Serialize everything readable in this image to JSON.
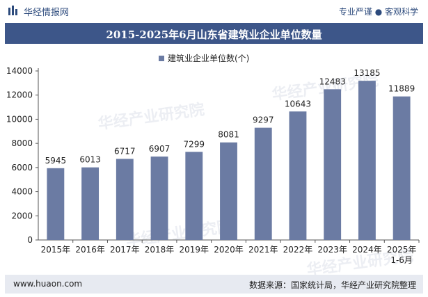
{
  "header": {
    "brand": "华经情报网",
    "tagline": "专业严谨 ● 客观科学"
  },
  "footer": {
    "website": "www.huaon.com",
    "source": "数据来源：国家统计局，华经产业研究院整理"
  },
  "watermark": {
    "text": "华经产业研究院",
    "url": "www.huaon.com"
  },
  "colors": {
    "bar": "#6b7ba3",
    "title_bg": "#3d5689",
    "footer_bg": "#e7eaf1",
    "brand": "#2c4a7c"
  },
  "chart_data": {
    "type": "bar",
    "title": "2015-2025年6月山东省建筑业企业单位数量",
    "categories": [
      "2015年",
      "2016年",
      "2017年",
      "2018年",
      "2019年",
      "2020年",
      "2021年",
      "2022年",
      "2023年",
      "2024年",
      "2025年\n1-6月"
    ],
    "series": [
      {
        "name": "建筑业企业单位数(个)",
        "values": [
          5945,
          6013,
          6717,
          6907,
          7299,
          8081,
          9297,
          10643,
          12483,
          13185,
          11889
        ]
      }
    ],
    "ylim": [
      0,
      14000
    ],
    "yticks": [
      0,
      2000,
      4000,
      6000,
      8000,
      10000,
      12000,
      14000
    ],
    "grid": false,
    "legend": "top-center"
  }
}
